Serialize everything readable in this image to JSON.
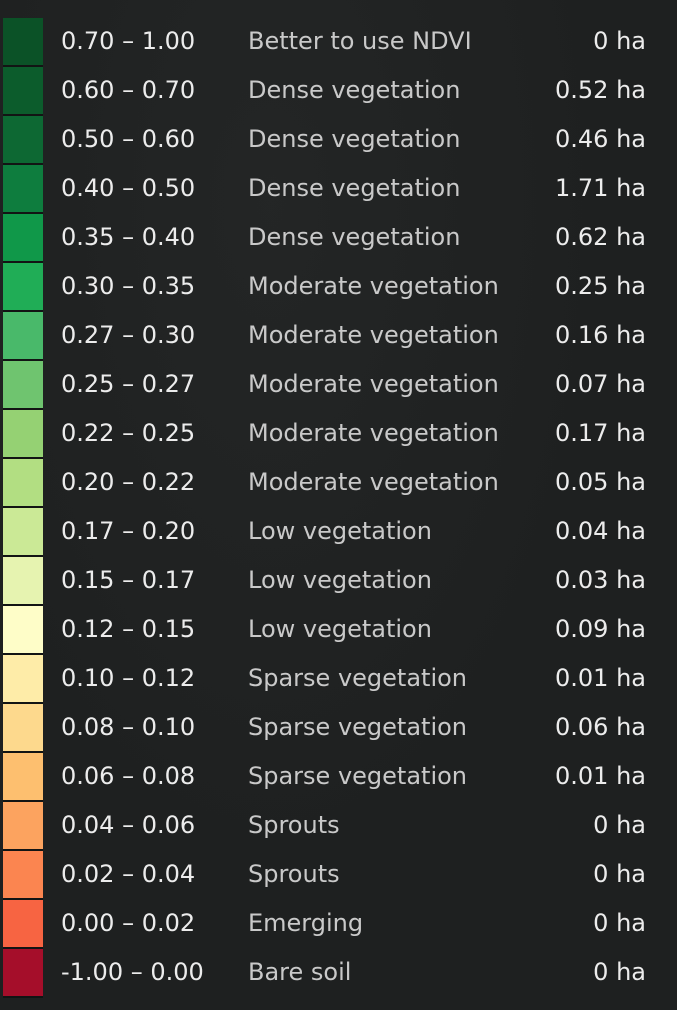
{
  "legend": {
    "rows": [
      {
        "range": "0.70 – 1.00",
        "category": "Better to use NDVI",
        "area": "0 ha",
        "color": "#0b5227"
      },
      {
        "range": "0.60 – 0.70",
        "category": "Dense vegetation",
        "area": "0.52 ha",
        "color": "#0c5c2c"
      },
      {
        "range": "0.50 – 0.60",
        "category": "Dense vegetation",
        "area": "0.46 ha",
        "color": "#0d6833"
      },
      {
        "range": "0.40 – 0.50",
        "category": "Dense vegetation",
        "area": "1.71 ha",
        "color": "#0e7d3e"
      },
      {
        "range": "0.35 – 0.40",
        "category": "Dense vegetation",
        "area": "0.62 ha",
        "color": "#109849"
      },
      {
        "range": "0.30 – 0.35",
        "category": "Moderate vegetation",
        "area": "0.25 ha",
        "color": "#20ad56"
      },
      {
        "range": "0.27 – 0.30",
        "category": "Moderate vegetation",
        "area": "0.16 ha",
        "color": "#49b96a"
      },
      {
        "range": "0.25 – 0.27",
        "category": "Moderate vegetation",
        "area": "0.07 ha",
        "color": "#6fc46f"
      },
      {
        "range": "0.22 – 0.25",
        "category": "Moderate vegetation",
        "area": "0.17 ha",
        "color": "#95d173"
      },
      {
        "range": "0.20 – 0.22",
        "category": "Moderate vegetation",
        "area": "0.05 ha",
        "color": "#b2de82"
      },
      {
        "range": "0.17 – 0.20",
        "category": "Low vegetation",
        "area": "0.04 ha",
        "color": "#cbe996"
      },
      {
        "range": "0.15 – 0.17",
        "category": "Low vegetation",
        "area": "0.03 ha",
        "color": "#e6f3b0"
      },
      {
        "range": "0.12 – 0.15",
        "category": "Low vegetation",
        "area": "0.09 ha",
        "color": "#fefdc8"
      },
      {
        "range": "0.10 – 0.12",
        "category": "Sparse vegetation",
        "area": "0.01 ha",
        "color": "#feeca8"
      },
      {
        "range": "0.08 – 0.10",
        "category": "Sparse vegetation",
        "area": "0.06 ha",
        "color": "#fdd98d"
      },
      {
        "range": "0.06 – 0.08",
        "category": "Sparse vegetation",
        "area": "0.01 ha",
        "color": "#fdbf6f"
      },
      {
        "range": "0.04 – 0.06",
        "category": "Sprouts",
        "area": "0 ha",
        "color": "#fca35f"
      },
      {
        "range": "0.02 – 0.04",
        "category": "Sprouts",
        "area": "0 ha",
        "color": "#fb8550"
      },
      {
        "range": "0.00 – 0.02",
        "category": "Emerging",
        "area": "0 ha",
        "color": "#f76442"
      },
      {
        "range": "-1.00 – 0.00",
        "category": "Bare soil",
        "area": "0 ha",
        "color": "#a50e2a"
      }
    ]
  }
}
